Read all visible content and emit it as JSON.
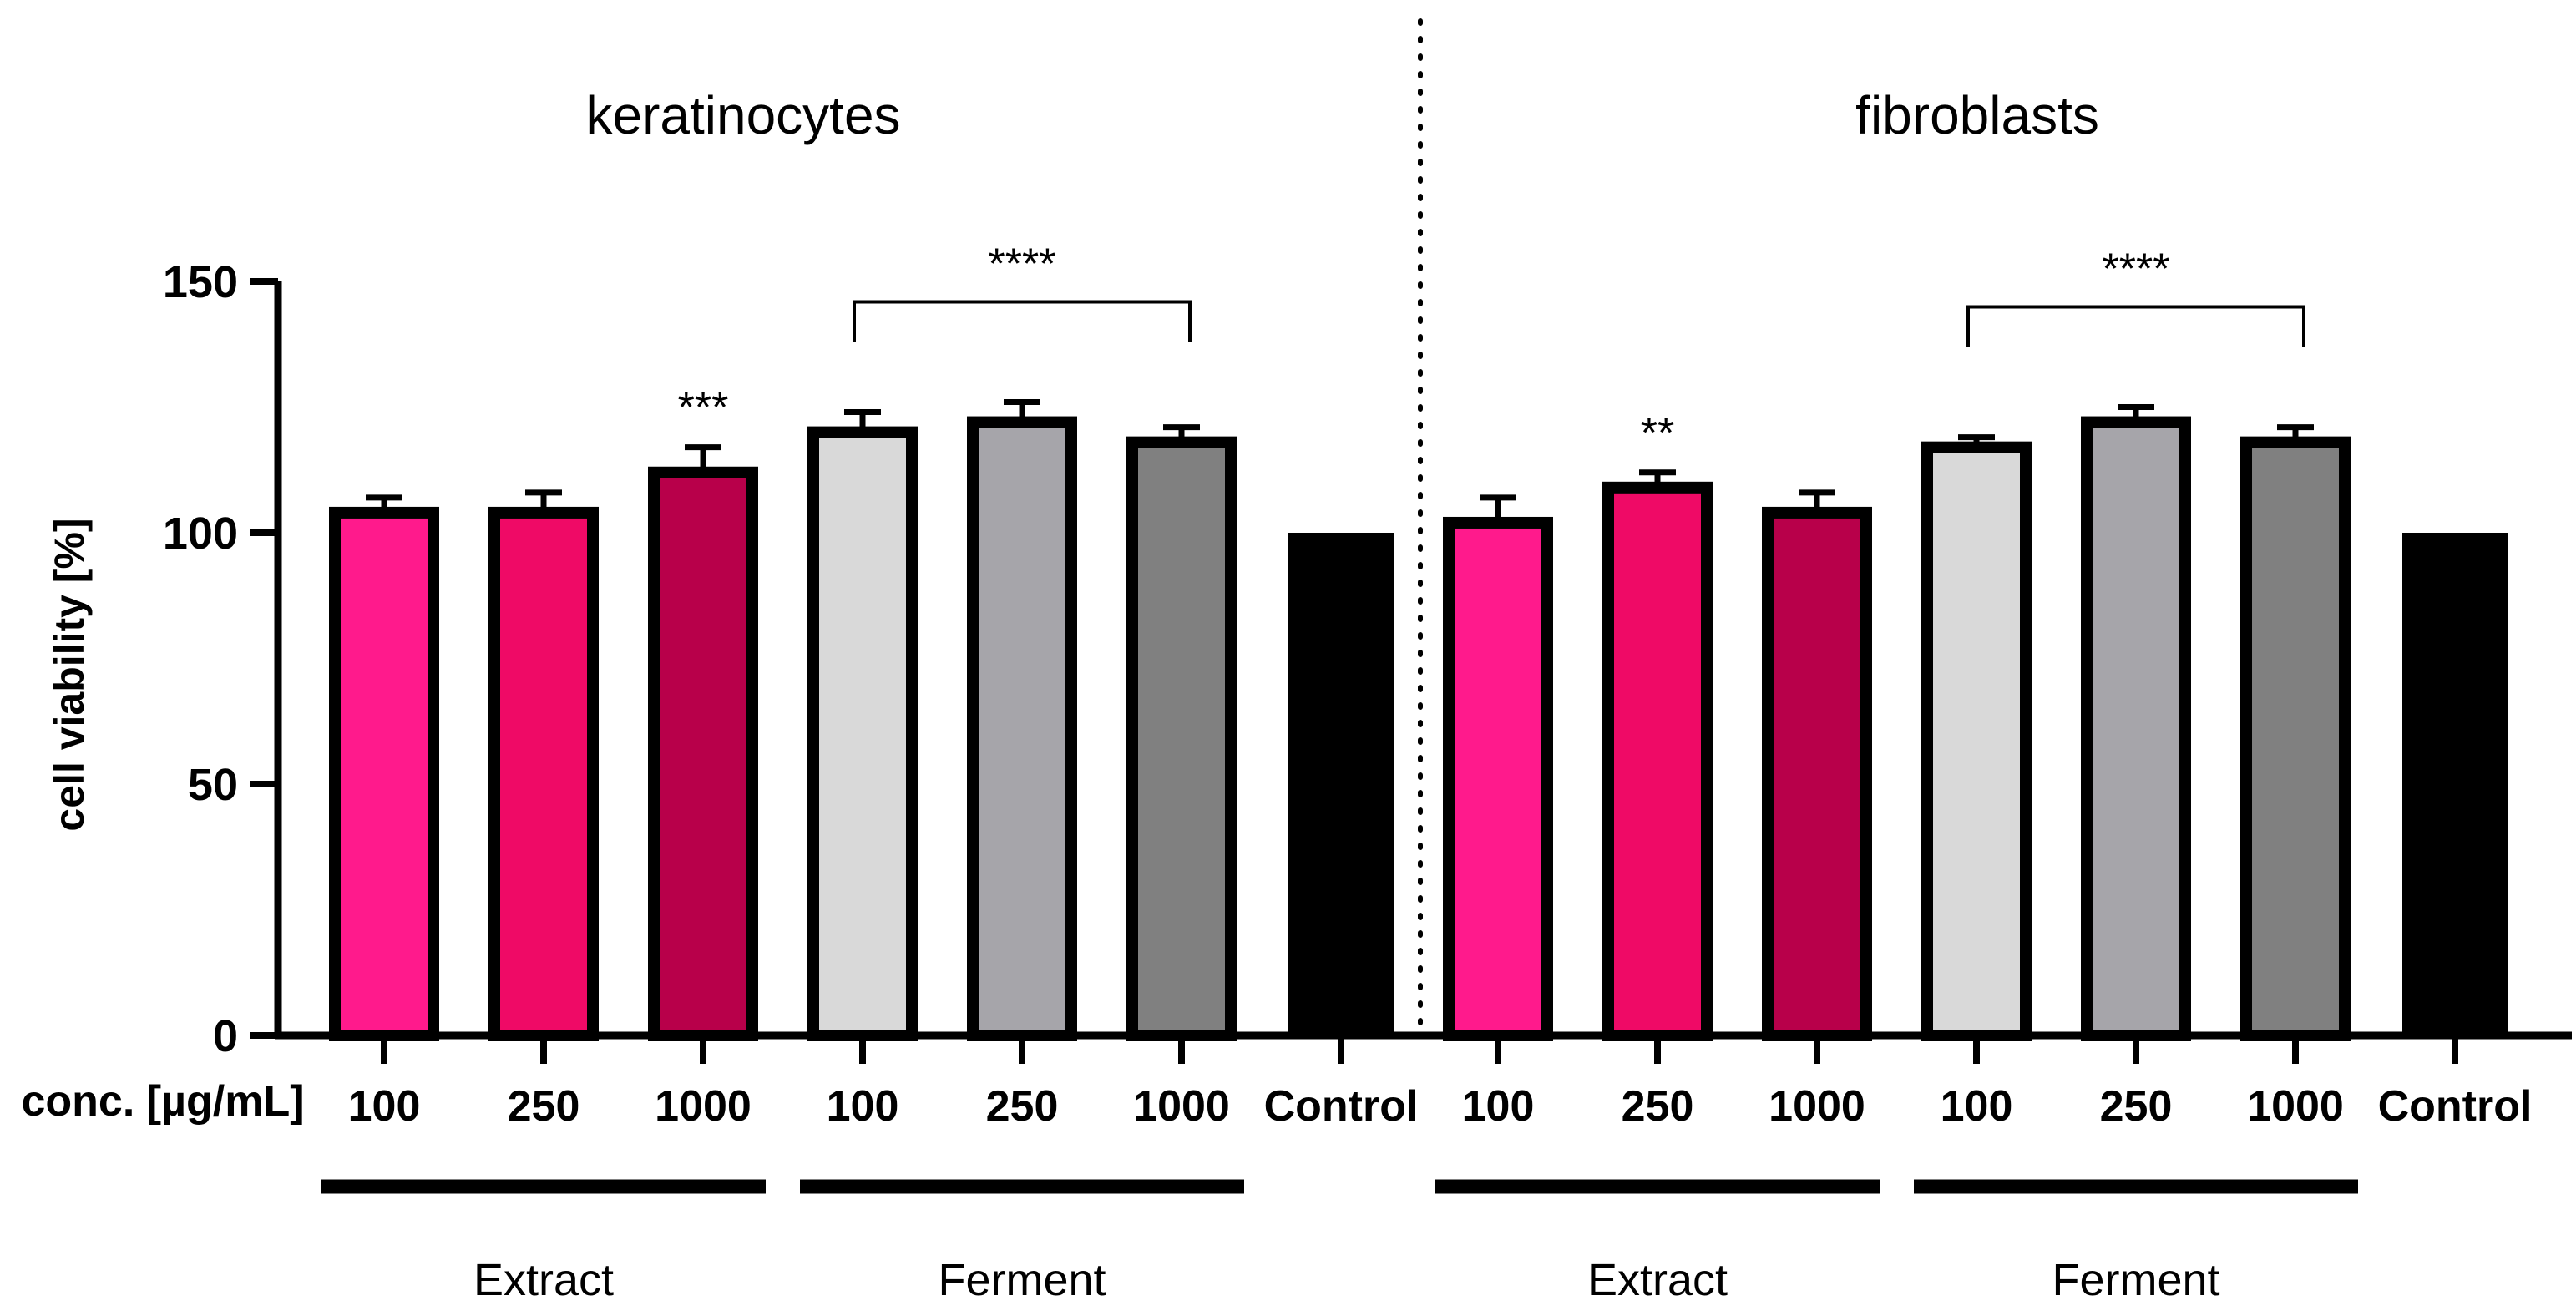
{
  "chart_data": {
    "type": "bar",
    "ylabel": "cell viability [%]",
    "ylim": [
      0,
      150
    ],
    "yticks": [
      0,
      50,
      100,
      150
    ],
    "x_row_label": "conc. [µg/mL]",
    "colors": {
      "extract_100": "#ff1a8c",
      "extract_250": "#ef0a66",
      "extract_1000": "#b8004a",
      "ferment_100": "#d9d9d9",
      "ferment_250": "#a6a5aa",
      "ferment_1000": "#808080",
      "control": "#000000"
    },
    "panels": [
      {
        "title": "keratinocytes",
        "categories": [
          "100",
          "250",
          "1000",
          "100",
          "250",
          "1000",
          "Control"
        ],
        "groups": [
          "Extract",
          "Extract",
          "Extract",
          "Ferment",
          "Ferment",
          "Ferment",
          ""
        ],
        "values": [
          104,
          104,
          112,
          120,
          122,
          118,
          100
        ],
        "errors": [
          3,
          4,
          5,
          4,
          4,
          3,
          0
        ],
        "significance": [
          {
            "label": "***",
            "from": 2,
            "to": 2,
            "bracket": false
          },
          {
            "label": "****",
            "from": 3,
            "to": 5,
            "bracket": true
          }
        ],
        "group_labels": [
          {
            "label": "Extract",
            "from": 0,
            "to": 2
          },
          {
            "label": "Ferment",
            "from": 3,
            "to": 5
          }
        ]
      },
      {
        "title": "fibroblasts",
        "categories": [
          "100",
          "250",
          "1000",
          "100",
          "250",
          "1000",
          "Control"
        ],
        "groups": [
          "Extract",
          "Extract",
          "Extract",
          "Ferment",
          "Ferment",
          "Ferment",
          ""
        ],
        "values": [
          102,
          109,
          104,
          117,
          122,
          118,
          100
        ],
        "errors": [
          5,
          3,
          4,
          2,
          3,
          3,
          0
        ],
        "significance": [
          {
            "label": "**",
            "from": 1,
            "to": 1,
            "bracket": false
          },
          {
            "label": "****",
            "from": 3,
            "to": 5,
            "bracket": true
          }
        ],
        "group_labels": [
          {
            "label": "Extract",
            "from": 0,
            "to": 2
          },
          {
            "label": "Ferment",
            "from": 3,
            "to": 5
          }
        ]
      }
    ]
  }
}
